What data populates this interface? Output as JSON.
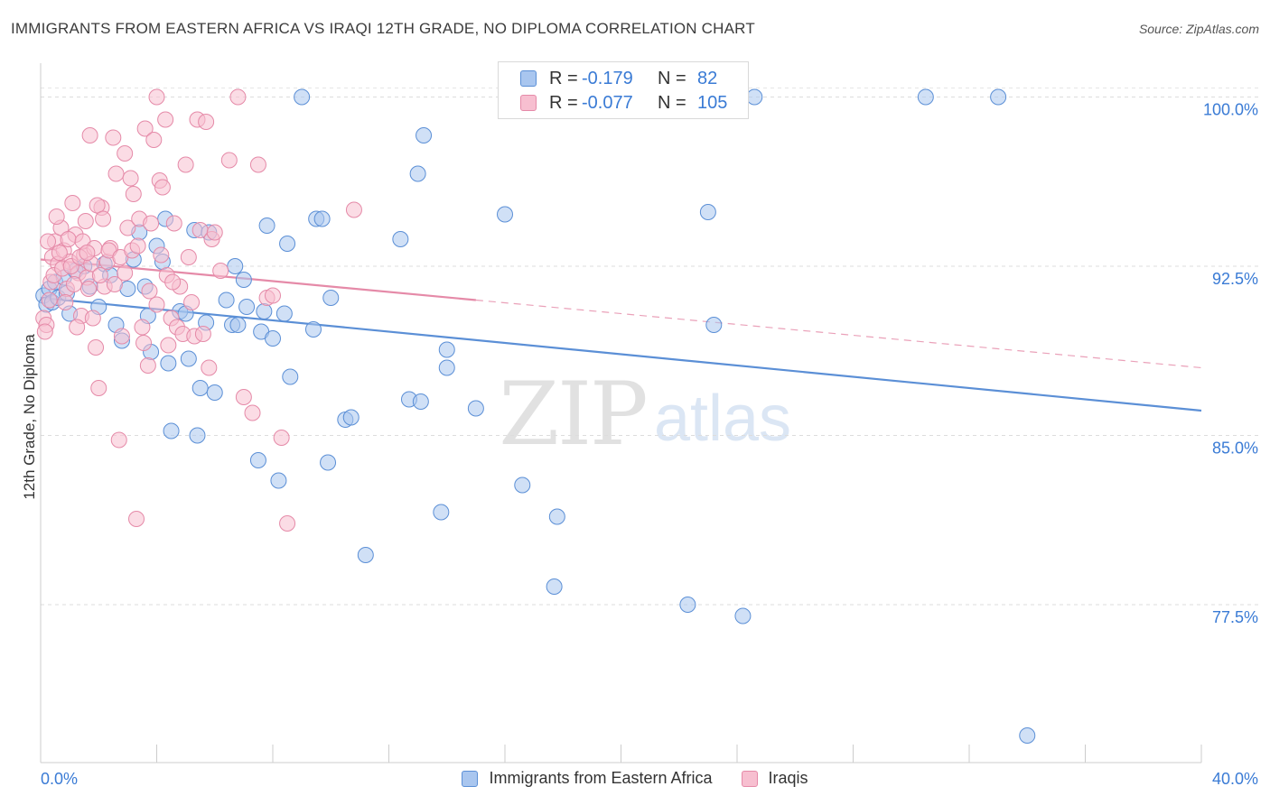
{
  "header": {
    "title": "IMMIGRANTS FROM EASTERN AFRICA VS IRAQI 12TH GRADE, NO DIPLOMA CORRELATION CHART",
    "source": "Source: ZipAtlas.com"
  },
  "watermark": {
    "zip": "ZIP",
    "atlas": "atlas"
  },
  "legend": {
    "rows": [
      {
        "r_label": "R =",
        "r_value": "-0.179",
        "n_label": "N =",
        "n_value": "82",
        "color": "#a9c6ef",
        "border": "#5b8fd6"
      },
      {
        "r_label": "R =",
        "r_value": "-0.077",
        "n_label": "N =",
        "n_value": "105",
        "color": "#f7bfd0",
        "border": "#e58aa8"
      }
    ]
  },
  "bottom_legend": {
    "items": [
      {
        "label": "Immigrants from Eastern Africa",
        "color": "#a9c6ef",
        "border": "#5b8fd6"
      },
      {
        "label": "Iraqis",
        "color": "#f7bfd0",
        "border": "#e58aa8"
      }
    ]
  },
  "chart_data": {
    "type": "scatter",
    "title": "IMMIGRANTS FROM EASTERN AFRICA VS IRAQI 12TH GRADE, NO DIPLOMA CORRELATION CHART",
    "xlabel": "",
    "ylabel": "12th Grade, No Diploma",
    "xlim": [
      0,
      40
    ],
    "ylim": [
      70.5,
      101.5
    ],
    "x_tick_labels": [
      "0.0%",
      "40.0%"
    ],
    "y_ticks": [
      77.5,
      85.0,
      92.5,
      100.0
    ],
    "y_tick_labels": [
      "77.5%",
      "85.0%",
      "92.5%",
      "100.0%"
    ],
    "grid": true,
    "series": [
      {
        "name": "Immigrants from Eastern Africa",
        "color": "#5b8fd6",
        "fill": "#a9c6ef",
        "trend": {
          "x0": 0,
          "y0": 91.1,
          "x1": 40,
          "y1": 86.1,
          "solid_until": 40
        },
        "points": [
          [
            0.1,
            91.2
          ],
          [
            0.2,
            90.8
          ],
          [
            0.3,
            91.5
          ],
          [
            0.4,
            90.9
          ],
          [
            0.5,
            91.8
          ],
          [
            0.6,
            91.1
          ],
          [
            0.8,
            92.0
          ],
          [
            0.9,
            91.3
          ],
          [
            1.0,
            90.4
          ],
          [
            1.2,
            92.3
          ],
          [
            1.5,
            92.5
          ],
          [
            1.7,
            91.6
          ],
          [
            2.0,
            90.7
          ],
          [
            2.2,
            92.6
          ],
          [
            2.4,
            92.1
          ],
          [
            2.6,
            89.9
          ],
          [
            2.8,
            89.2
          ],
          [
            3.0,
            91.5
          ],
          [
            3.2,
            92.8
          ],
          [
            3.4,
            94.0
          ],
          [
            3.6,
            91.6
          ],
          [
            3.7,
            90.3
          ],
          [
            3.8,
            88.7
          ],
          [
            4.0,
            93.4
          ],
          [
            4.2,
            92.7
          ],
          [
            4.3,
            94.6
          ],
          [
            4.4,
            88.2
          ],
          [
            4.5,
            85.2
          ],
          [
            4.8,
            90.5
          ],
          [
            5.0,
            90.4
          ],
          [
            5.1,
            88.4
          ],
          [
            5.3,
            94.1
          ],
          [
            5.4,
            85.0
          ],
          [
            5.5,
            87.1
          ],
          [
            5.7,
            90.0
          ],
          [
            5.8,
            94.0
          ],
          [
            6.0,
            86.9
          ],
          [
            6.4,
            91.0
          ],
          [
            6.6,
            89.9
          ],
          [
            6.7,
            92.5
          ],
          [
            6.8,
            89.9
          ],
          [
            7.0,
            91.9
          ],
          [
            7.1,
            90.7
          ],
          [
            7.5,
            83.9
          ],
          [
            7.6,
            89.6
          ],
          [
            7.7,
            90.5
          ],
          [
            7.8,
            94.3
          ],
          [
            8.0,
            89.3
          ],
          [
            8.2,
            83.0
          ],
          [
            8.4,
            90.4
          ],
          [
            8.5,
            93.5
          ],
          [
            8.6,
            87.6
          ],
          [
            9.0,
            100.0
          ],
          [
            9.4,
            89.7
          ],
          [
            9.5,
            94.6
          ],
          [
            9.7,
            94.6
          ],
          [
            9.9,
            83.8
          ],
          [
            10.0,
            91.1
          ],
          [
            10.5,
            85.7
          ],
          [
            10.7,
            85.8
          ],
          [
            11.2,
            79.7
          ],
          [
            12.7,
            86.6
          ],
          [
            13.0,
            96.6
          ],
          [
            13.1,
            86.5
          ],
          [
            13.2,
            98.3
          ],
          [
            13.8,
            81.6
          ],
          [
            14.0,
            88.0
          ],
          [
            14.0,
            88.8
          ],
          [
            15.0,
            86.2
          ],
          [
            16.0,
            94.8
          ],
          [
            16.6,
            82.8
          ],
          [
            17.7,
            78.3
          ],
          [
            17.8,
            81.4
          ],
          [
            22.3,
            77.5
          ],
          [
            23.0,
            94.9
          ],
          [
            23.2,
            89.9
          ],
          [
            24.2,
            77.0
          ],
          [
            24.6,
            100.0
          ],
          [
            30.5,
            100.0
          ],
          [
            33.0,
            100.0
          ],
          [
            34.0,
            71.7
          ],
          [
            12.4,
            93.7
          ]
        ]
      },
      {
        "name": "Iraqis",
        "color": "#e58aa8",
        "fill": "#f7bfd0",
        "trend": {
          "x0": 0,
          "y0": 92.8,
          "x1": 40,
          "y1": 88.0,
          "solid_until": 15
        },
        "points": [
          [
            0.1,
            90.2
          ],
          [
            0.2,
            89.9
          ],
          [
            0.3,
            91.0
          ],
          [
            0.4,
            92.9
          ],
          [
            0.5,
            93.6
          ],
          [
            0.6,
            92.6
          ],
          [
            0.7,
            94.2
          ],
          [
            0.8,
            93.2
          ],
          [
            0.9,
            91.5
          ],
          [
            1.0,
            92.7
          ],
          [
            1.1,
            95.3
          ],
          [
            1.2,
            93.9
          ],
          [
            1.3,
            92.2
          ],
          [
            1.4,
            90.3
          ],
          [
            1.5,
            93.0
          ],
          [
            1.6,
            92.0
          ],
          [
            1.7,
            98.3
          ],
          [
            1.8,
            90.2
          ],
          [
            1.9,
            88.9
          ],
          [
            2.0,
            87.1
          ],
          [
            2.1,
            95.1
          ],
          [
            2.2,
            91.6
          ],
          [
            2.3,
            92.7
          ],
          [
            2.4,
            93.3
          ],
          [
            2.5,
            98.2
          ],
          [
            2.6,
            96.6
          ],
          [
            2.7,
            84.8
          ],
          [
            2.8,
            89.4
          ],
          [
            2.9,
            97.5
          ],
          [
            3.0,
            94.2
          ],
          [
            3.1,
            96.4
          ],
          [
            3.2,
            95.7
          ],
          [
            3.3,
            81.3
          ],
          [
            3.4,
            94.6
          ],
          [
            3.5,
            89.8
          ],
          [
            3.6,
            98.6
          ],
          [
            3.7,
            88.1
          ],
          [
            3.8,
            94.4
          ],
          [
            3.9,
            98.1
          ],
          [
            4.0,
            90.8
          ],
          [
            4.1,
            96.3
          ],
          [
            4.2,
            96.0
          ],
          [
            4.3,
            99.0
          ],
          [
            4.4,
            89.0
          ],
          [
            4.5,
            90.2
          ],
          [
            4.6,
            94.4
          ],
          [
            4.7,
            89.8
          ],
          [
            4.8,
            91.6
          ],
          [
            4.9,
            89.5
          ],
          [
            5.0,
            97.0
          ],
          [
            5.1,
            92.9
          ],
          [
            5.2,
            90.9
          ],
          [
            5.3,
            89.4
          ],
          [
            5.4,
            99.0
          ],
          [
            5.5,
            94.1
          ],
          [
            5.6,
            89.5
          ],
          [
            5.7,
            98.9
          ],
          [
            5.8,
            88.0
          ],
          [
            5.9,
            93.7
          ],
          [
            6.0,
            94.0
          ],
          [
            6.2,
            92.3
          ],
          [
            6.5,
            97.2
          ],
          [
            6.8,
            100.0
          ],
          [
            7.0,
            86.7
          ],
          [
            7.3,
            86.0
          ],
          [
            7.5,
            97.0
          ],
          [
            7.8,
            91.1
          ],
          [
            8.0,
            91.2
          ],
          [
            8.3,
            84.9
          ],
          [
            8.5,
            81.1
          ],
          [
            0.25,
            93.6
          ],
          [
            0.35,
            91.8
          ],
          [
            0.45,
            92.1
          ],
          [
            0.55,
            94.7
          ],
          [
            0.65,
            93.1
          ],
          [
            0.75,
            92.4
          ],
          [
            0.85,
            90.9
          ],
          [
            0.95,
            93.7
          ],
          [
            1.05,
            92.5
          ],
          [
            1.15,
            91.7
          ],
          [
            1.25,
            89.8
          ],
          [
            1.35,
            92.9
          ],
          [
            1.45,
            93.6
          ],
          [
            1.55,
            94.5
          ],
          [
            1.65,
            91.5
          ],
          [
            1.75,
            92.6
          ],
          [
            1.85,
            93.3
          ],
          [
            1.95,
            95.2
          ],
          [
            2.05,
            92.1
          ],
          [
            2.15,
            94.6
          ],
          [
            2.35,
            93.2
          ],
          [
            2.55,
            91.7
          ],
          [
            2.75,
            92.9
          ],
          [
            3.15,
            93.2
          ],
          [
            3.35,
            93.4
          ],
          [
            3.55,
            89.1
          ],
          [
            3.75,
            91.4
          ],
          [
            4.15,
            93.0
          ],
          [
            4.35,
            92.1
          ],
          [
            4.55,
            91.8
          ],
          [
            10.8,
            95.0
          ],
          [
            4.0,
            100.0
          ],
          [
            0.15,
            89.6
          ],
          [
            1.6,
            93.1
          ],
          [
            2.9,
            92.2
          ]
        ]
      }
    ]
  }
}
